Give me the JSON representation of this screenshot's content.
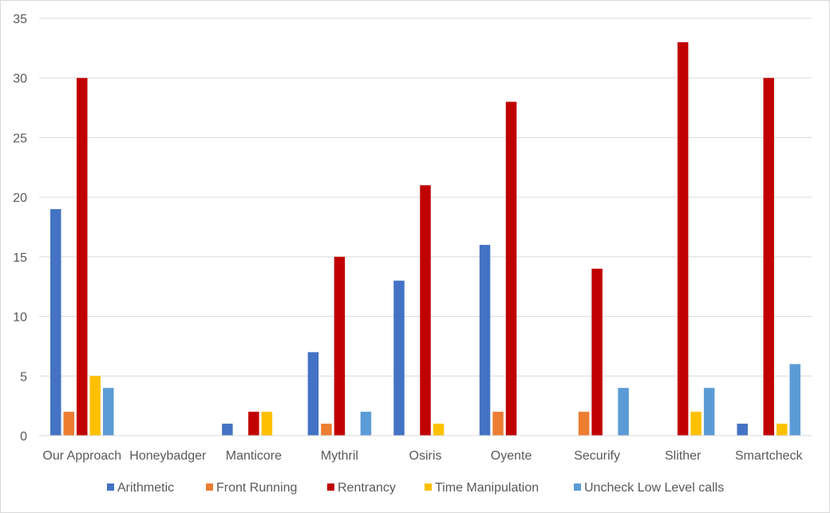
{
  "chart_data": {
    "type": "bar",
    "categories": [
      "Our Approach",
      "Honeybadger",
      "Manticore",
      "Mythril",
      "Osiris",
      "Oyente",
      "Securify",
      "Slither",
      "Smartcheck"
    ],
    "series": [
      {
        "name": "Arithmetic",
        "color": "#4472c4",
        "values": [
          19,
          0,
          1,
          7,
          13,
          16,
          0,
          0,
          1
        ]
      },
      {
        "name": "Front Running",
        "color": "#ed7d31",
        "values": [
          2,
          0,
          0,
          1,
          0,
          2,
          2,
          0,
          0
        ]
      },
      {
        "name": "Rentrancy",
        "color": "#c00000",
        "values": [
          30,
          0,
          2,
          15,
          21,
          28,
          14,
          33,
          30
        ]
      },
      {
        "name": "Time Manipulation",
        "color": "#ffc000",
        "values": [
          5,
          0,
          2,
          0,
          1,
          0,
          0,
          2,
          1
        ]
      },
      {
        "name": "Uncheck Low Level calls",
        "color": "#5b9bd5",
        "values": [
          4,
          0,
          0,
          2,
          0,
          0,
          4,
          4,
          6
        ]
      }
    ],
    "ylim": [
      0,
      35
    ],
    "yticks": [
      "0",
      "5",
      "10",
      "15",
      "20",
      "25",
      "30",
      "35"
    ],
    "grid": true,
    "legend_position": "bottom",
    "title": "",
    "xlabel": "",
    "ylabel": ""
  }
}
